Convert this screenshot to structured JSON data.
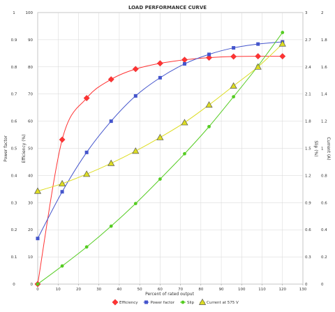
{
  "chart_data": {
    "type": "scatter",
    "title": "LOAD PERFORMANCE CURVE",
    "xlabel": "Percent of rated output",
    "xlim": [
      0,
      130
    ],
    "x_ticks": [
      "0",
      "10",
      "20",
      "30",
      "40",
      "50",
      "60",
      "70",
      "80",
      "90",
      "100",
      "110",
      "120",
      "130"
    ],
    "axes": {
      "pf": {
        "label": "Power factor",
        "lim": [
          0,
          1
        ],
        "ticks": [
          "0",
          "0.1",
          "0.2",
          "0.3",
          "0.4",
          "0.5",
          "0.6",
          "0.7",
          "0.8",
          "0.9",
          "1"
        ]
      },
      "eff": {
        "label": "Efficiency (%)",
        "lim": [
          0,
          100
        ],
        "ticks": [
          "0",
          "10",
          "20",
          "30",
          "40",
          "50",
          "60",
          "70",
          "80",
          "90",
          "100"
        ]
      },
      "slip": {
        "label": "Slip (%)",
        "lim": [
          0,
          3
        ],
        "ticks": [
          "0",
          "0.3",
          "0.6",
          "0.9",
          "1.2",
          "1.5",
          "1.8",
          "2.1",
          "2.4",
          "2.7",
          "3"
        ]
      },
      "current": {
        "label": "Current (A)",
        "lim": [
          0,
          2
        ],
        "ticks": [
          "0",
          "0.2",
          "0.4",
          "0.6",
          "0.8",
          "1",
          "1.2",
          "1.4",
          "1.6",
          "1.8",
          "2"
        ]
      }
    },
    "grid": true,
    "legend_position": "bottom",
    "series": [
      {
        "name": "Efficiency",
        "axis": "eff",
        "color": "#ff3333",
        "marker": "diamond",
        "x": [
          0,
          12,
          24,
          36,
          48,
          60,
          72,
          84,
          96,
          108,
          120
        ],
        "y": [
          0,
          53.2,
          68.5,
          75.4,
          79.2,
          81.3,
          82.6,
          83.4,
          83.8,
          83.9,
          83.9
        ]
      },
      {
        "name": "Power factor",
        "axis": "pf",
        "color": "#4455cc",
        "marker": "square",
        "x": [
          0,
          12,
          24,
          36,
          48,
          60,
          72,
          84,
          96,
          108,
          120
        ],
        "y": [
          0.168,
          0.34,
          0.485,
          0.6,
          0.693,
          0.76,
          0.811,
          0.846,
          0.87,
          0.884,
          0.892
        ]
      },
      {
        "name": "Slip",
        "axis": "slip",
        "color": "#55cc22",
        "marker": "circle",
        "x": [
          0,
          12,
          24,
          36,
          48,
          60,
          72,
          84,
          96,
          108,
          120
        ],
        "y": [
          0,
          0.2,
          0.41,
          0.64,
          0.89,
          1.16,
          1.44,
          1.74,
          2.07,
          2.41,
          2.78
        ]
      },
      {
        "name": "Current at 575 V",
        "axis": "current",
        "color": "#dddd22",
        "marker": "triangle",
        "x": [
          0,
          12,
          24,
          36,
          48,
          60,
          72,
          84,
          96,
          108,
          120
        ],
        "y": [
          0.685,
          0.74,
          0.81,
          0.89,
          0.98,
          1.08,
          1.19,
          1.32,
          1.46,
          1.6,
          1.77
        ]
      }
    ]
  }
}
